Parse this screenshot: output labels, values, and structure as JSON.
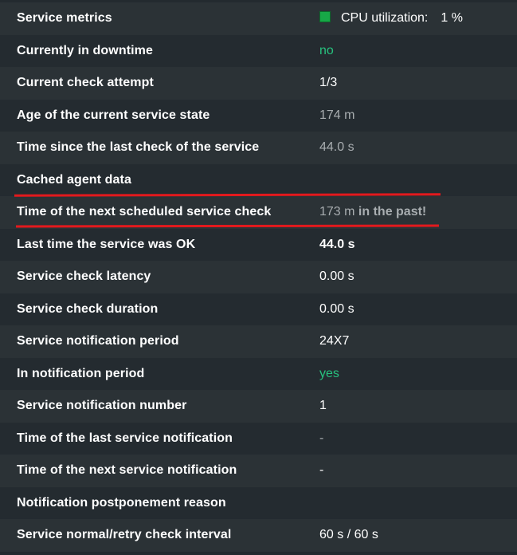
{
  "rows": [
    {
      "label": "Service metrics",
      "cpu_label": "CPU utilization:",
      "cpu_value": "1 %"
    },
    {
      "label": "Currently in downtime",
      "value": "no"
    },
    {
      "label": "Current check attempt",
      "value": "1/3"
    },
    {
      "label": "Age of the current service state",
      "value": "174 m"
    },
    {
      "label": "Time since the last check of the service",
      "value": "44.0 s"
    },
    {
      "label": "Cached agent data",
      "value": ""
    },
    {
      "label": "Time of the next scheduled service check",
      "value": "173 m",
      "suffix": "in the past!"
    },
    {
      "label": "Last time the service was OK",
      "value": "44.0 s"
    },
    {
      "label": "Service check latency",
      "value": "0.00 s"
    },
    {
      "label": "Service check duration",
      "value": "0.00 s"
    },
    {
      "label": "Service notification period",
      "value": "24X7"
    },
    {
      "label": "In notification period",
      "value": "yes"
    },
    {
      "label": "Service notification number",
      "value": "1"
    },
    {
      "label": "Time of the last service notification",
      "value": "-"
    },
    {
      "label": "Time of the next service notification",
      "value": "-"
    },
    {
      "label": "Notification postponement reason",
      "value": ""
    },
    {
      "label": "Service normal/retry check interval",
      "value": "60 s / 60 s"
    }
  ],
  "colors": {
    "cpu_indicator": "#17a847",
    "green_text": "#27c17e",
    "dim_text": "#a8adb0",
    "annotation_red": "#e3191d"
  }
}
